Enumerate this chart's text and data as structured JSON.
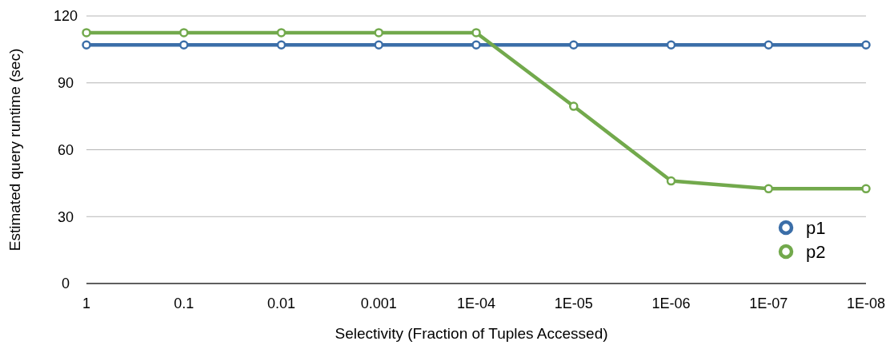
{
  "chart_data": {
    "type": "line",
    "xlabel": "Selectivity (Fraction of Tuples Accessed)",
    "ylabel": "Estimated query runtime (sec)",
    "categories": [
      "1",
      "0.1",
      "0.01",
      "0.001",
      "1E-04",
      "1E-05",
      "1E-06",
      "1E-07",
      "1E-08"
    ],
    "series": [
      {
        "name": "p1",
        "color": "#3b6ea8",
        "values": [
          107,
          107,
          107,
          107,
          107,
          107,
          107,
          107,
          107
        ]
      },
      {
        "name": "p2",
        "color": "#72a94c",
        "values": [
          112.5,
          112.5,
          112.5,
          112.5,
          112.5,
          79.5,
          46,
          42.5,
          42.5
        ]
      }
    ],
    "ylim": [
      0,
      120
    ],
    "yticks": [
      0,
      30,
      60,
      90,
      120
    ],
    "grid": "y",
    "legend": "bottom right",
    "marker": "circle",
    "line_style": "solid"
  }
}
